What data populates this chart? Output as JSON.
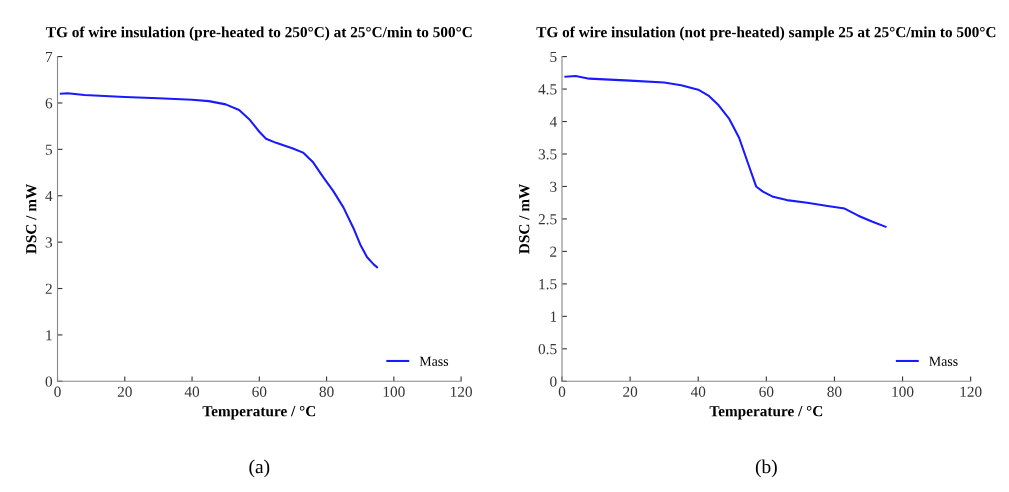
{
  "chart_data": [
    {
      "type": "line",
      "title": "TG of wire insulation (pre-heated to 250°C) at 25°C/min to 500°C",
      "xlabel": "Temperature / °C",
      "ylabel": "DSC / mW",
      "annotations": [
        "(a)"
      ],
      "xlim": [
        0,
        120
      ],
      "xticks": [
        0,
        20,
        40,
        60,
        80,
        100,
        120
      ],
      "ylim": [
        0,
        7
      ],
      "yticks": [
        0,
        1,
        2,
        3,
        4,
        5,
        6,
        7
      ],
      "grid": false,
      "legend": "bottom right",
      "series": [
        {
          "name": "Mass",
          "color": "#1a1aff",
          "x": [
            1,
            3,
            8,
            20,
            30,
            40,
            45,
            50,
            54,
            57,
            60,
            62,
            65,
            70,
            73,
            76,
            79,
            82,
            85,
            88,
            90,
            92,
            94,
            95
          ],
          "values": [
            6.2,
            6.21,
            6.17,
            6.13,
            6.1,
            6.07,
            6.04,
            5.97,
            5.85,
            5.65,
            5.38,
            5.23,
            5.14,
            5.02,
            4.93,
            4.72,
            4.4,
            4.1,
            3.75,
            3.3,
            2.95,
            2.68,
            2.52,
            2.46
          ]
        }
      ]
    },
    {
      "type": "line",
      "title": "TG of wire insulation (not pre-heated) sample 25 at 25°C/min to 500°C",
      "xlabel": "Temperature / °C",
      "ylabel": "DSC / mW",
      "annotations": [
        "(b)"
      ],
      "xlim": [
        0,
        120
      ],
      "xticks": [
        0,
        20,
        40,
        60,
        80,
        100,
        120
      ],
      "ylim": [
        0,
        5
      ],
      "yticks": [
        0,
        0.5,
        1,
        1.5,
        2,
        2.5,
        3,
        3.5,
        4,
        4.5,
        5
      ],
      "grid": false,
      "legend": "bottom right",
      "series": [
        {
          "name": "Mass",
          "color": "#1a1aff",
          "x": [
            1,
            4,
            8,
            20,
            30,
            35,
            40,
            43,
            46,
            49,
            52,
            55,
            57,
            59,
            62,
            66,
            72,
            78,
            83,
            87,
            91,
            95
          ],
          "values": [
            4.69,
            4.7,
            4.66,
            4.63,
            4.6,
            4.56,
            4.49,
            4.4,
            4.25,
            4.05,
            3.75,
            3.3,
            3.0,
            2.92,
            2.84,
            2.79,
            2.75,
            2.7,
            2.66,
            2.55,
            2.46,
            2.38
          ]
        }
      ]
    }
  ]
}
